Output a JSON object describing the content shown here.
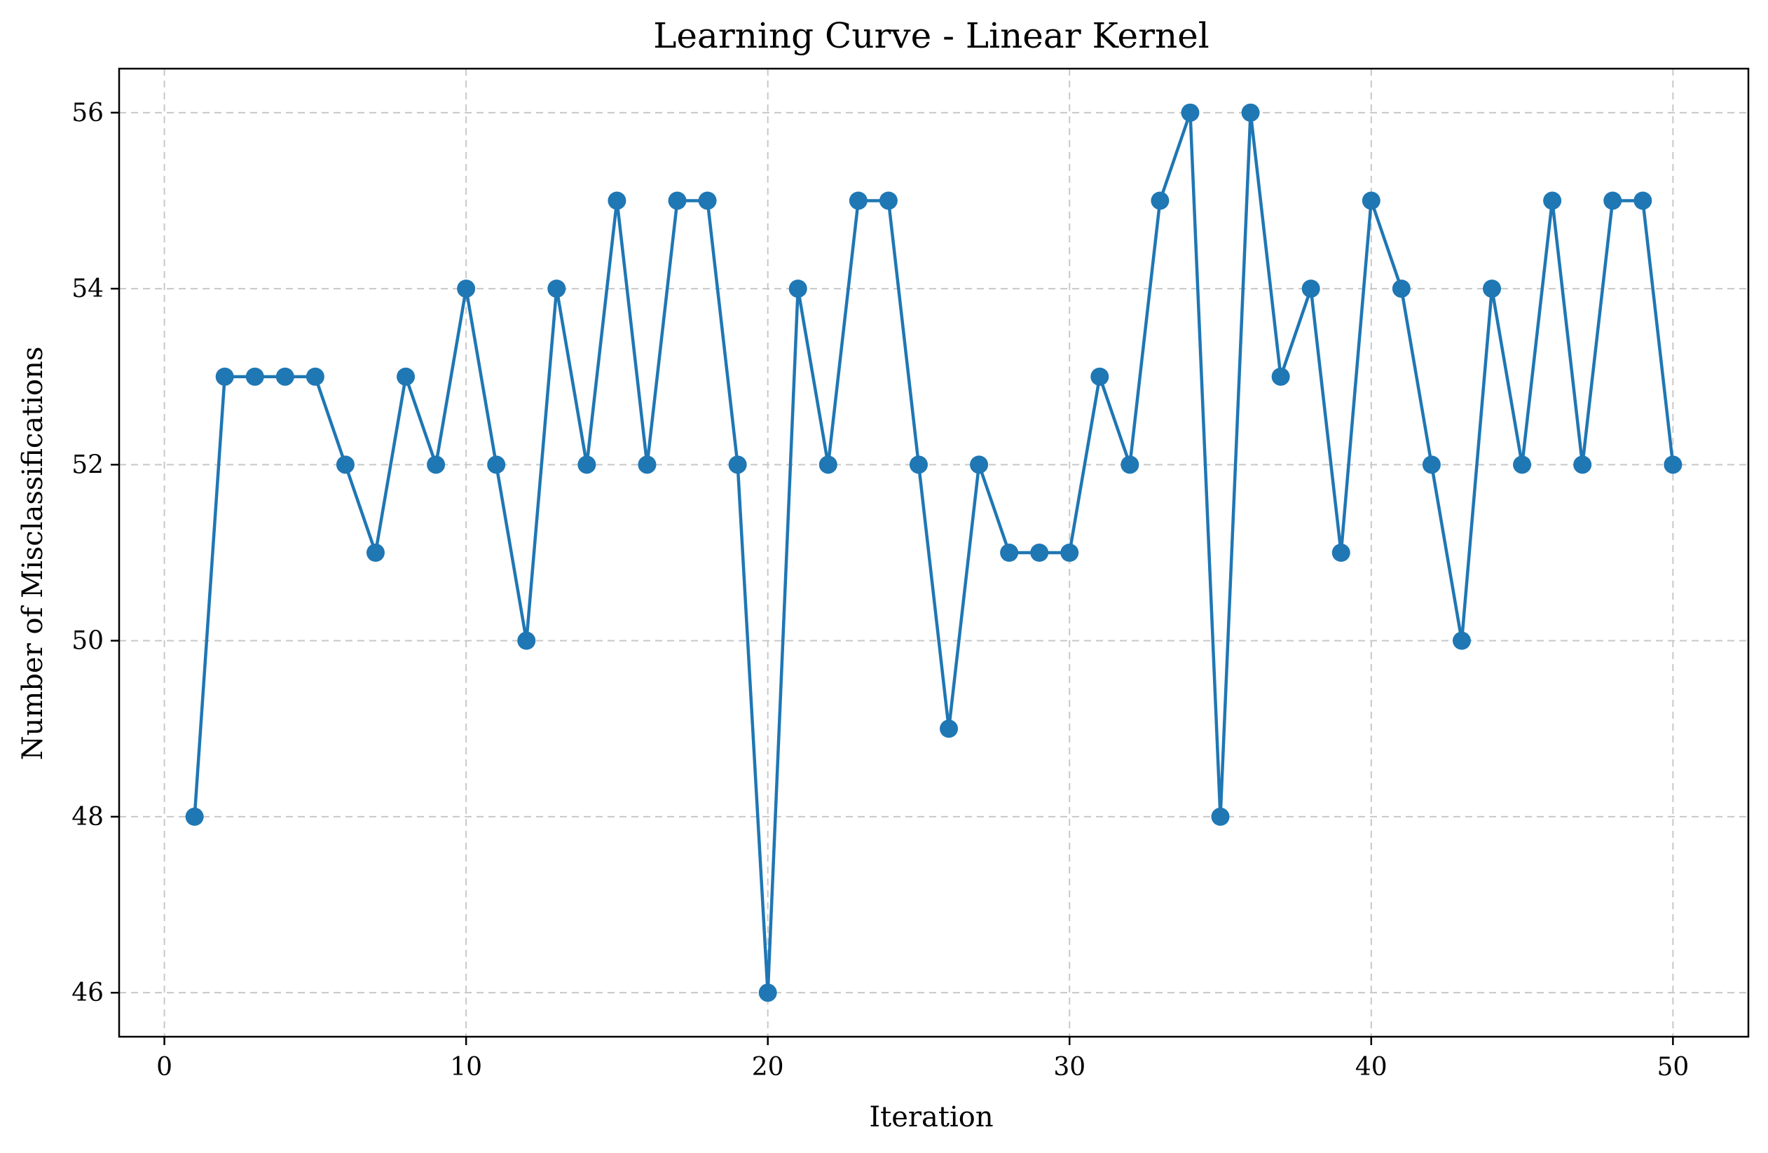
{
  "chart_data": {
    "type": "line",
    "title": "Learning Curve - Linear Kernel",
    "xlabel": "Iteration",
    "ylabel": "Number of Misclassifications",
    "xlim": [
      -1.5,
      52.5
    ],
    "ylim": [
      45.5,
      56.5
    ],
    "xticks": [
      0,
      10,
      20,
      30,
      40,
      50
    ],
    "yticks": [
      46,
      48,
      50,
      52,
      54,
      56
    ],
    "grid": true,
    "series": [
      {
        "color": "#1f77b4",
        "marker": "circle",
        "x": [
          1,
          2,
          3,
          4,
          5,
          6,
          7,
          8,
          9,
          10,
          11,
          12,
          13,
          14,
          15,
          16,
          17,
          18,
          19,
          20,
          21,
          22,
          23,
          24,
          25,
          26,
          27,
          28,
          29,
          30,
          31,
          32,
          33,
          34,
          35,
          36,
          37,
          38,
          39,
          40,
          41,
          42,
          43,
          44,
          45,
          46,
          47,
          48,
          49,
          50
        ],
        "y": [
          48,
          53,
          53,
          53,
          53,
          52,
          51,
          53,
          52,
          54,
          52,
          50,
          54,
          52,
          55,
          52,
          55,
          55,
          52,
          46,
          54,
          52,
          55,
          55,
          52,
          49,
          52,
          51,
          51,
          51,
          53,
          52,
          55,
          56,
          48,
          56,
          53,
          54,
          51,
          55,
          54,
          52,
          50,
          54,
          52,
          55,
          52,
          55,
          55,
          52
        ]
      }
    ]
  }
}
